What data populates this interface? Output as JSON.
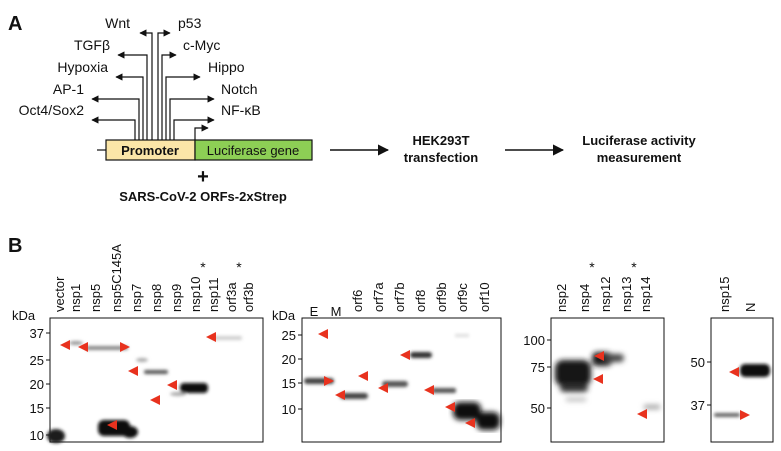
{
  "panel_a": {
    "letter": "A",
    "pathways_left": [
      "Wnt",
      "TGFβ",
      "Hypoxia",
      "AP-1",
      "Oct4/Sox2"
    ],
    "pathways_right": [
      "p53",
      "c-Myc",
      "Hippo",
      "Notch",
      "NF-κB"
    ],
    "promoter_label": "Promoter",
    "gene_label": "Luciferase gene",
    "plus": "+",
    "orfs_label": "SARS-CoV-2 ORFs-2xStrep",
    "step1_line1": "HEK293T",
    "step1_line2": "transfection",
    "step2_line1": "Luciferase activity",
    "step2_line2": "measurement",
    "colors": {
      "promoter": "#fbe6a8",
      "gene": "#8dcf55"
    }
  },
  "panel_b": {
    "letter": "B",
    "star": "*",
    "kda_label": "kDa",
    "blot1": {
      "lanes": [
        "vector",
        "nsp1",
        "nsp5",
        "nsp5C145A",
        "nsp7",
        "nsp8",
        "nsp9",
        "nsp10",
        "nsp11",
        "orf3a",
        "orf3b"
      ],
      "starred": [
        "nsp11",
        "orf3b"
      ],
      "ticks": [
        "37",
        "25",
        "20",
        "15",
        "10"
      ]
    },
    "blot2": {
      "lanes": [
        "E",
        "M",
        "orf6",
        "orf7a",
        "orf7b",
        "orf8",
        "orf9b",
        "orf9c",
        "orf10"
      ],
      "ticks": [
        "25",
        "20",
        "15",
        "10"
      ]
    },
    "blot3": {
      "lanes": [
        "nsp2",
        "nsp4",
        "nsp12",
        "nsp13",
        "nsp14"
      ],
      "starred": [
        "nsp4",
        "nsp13"
      ],
      "ticks": [
        "100",
        "75",
        "50"
      ]
    },
    "blot4": {
      "lanes": [
        "nsp15",
        "N"
      ],
      "ticks": [
        "50",
        "37"
      ]
    },
    "arrow_color": "#e8321e"
  }
}
